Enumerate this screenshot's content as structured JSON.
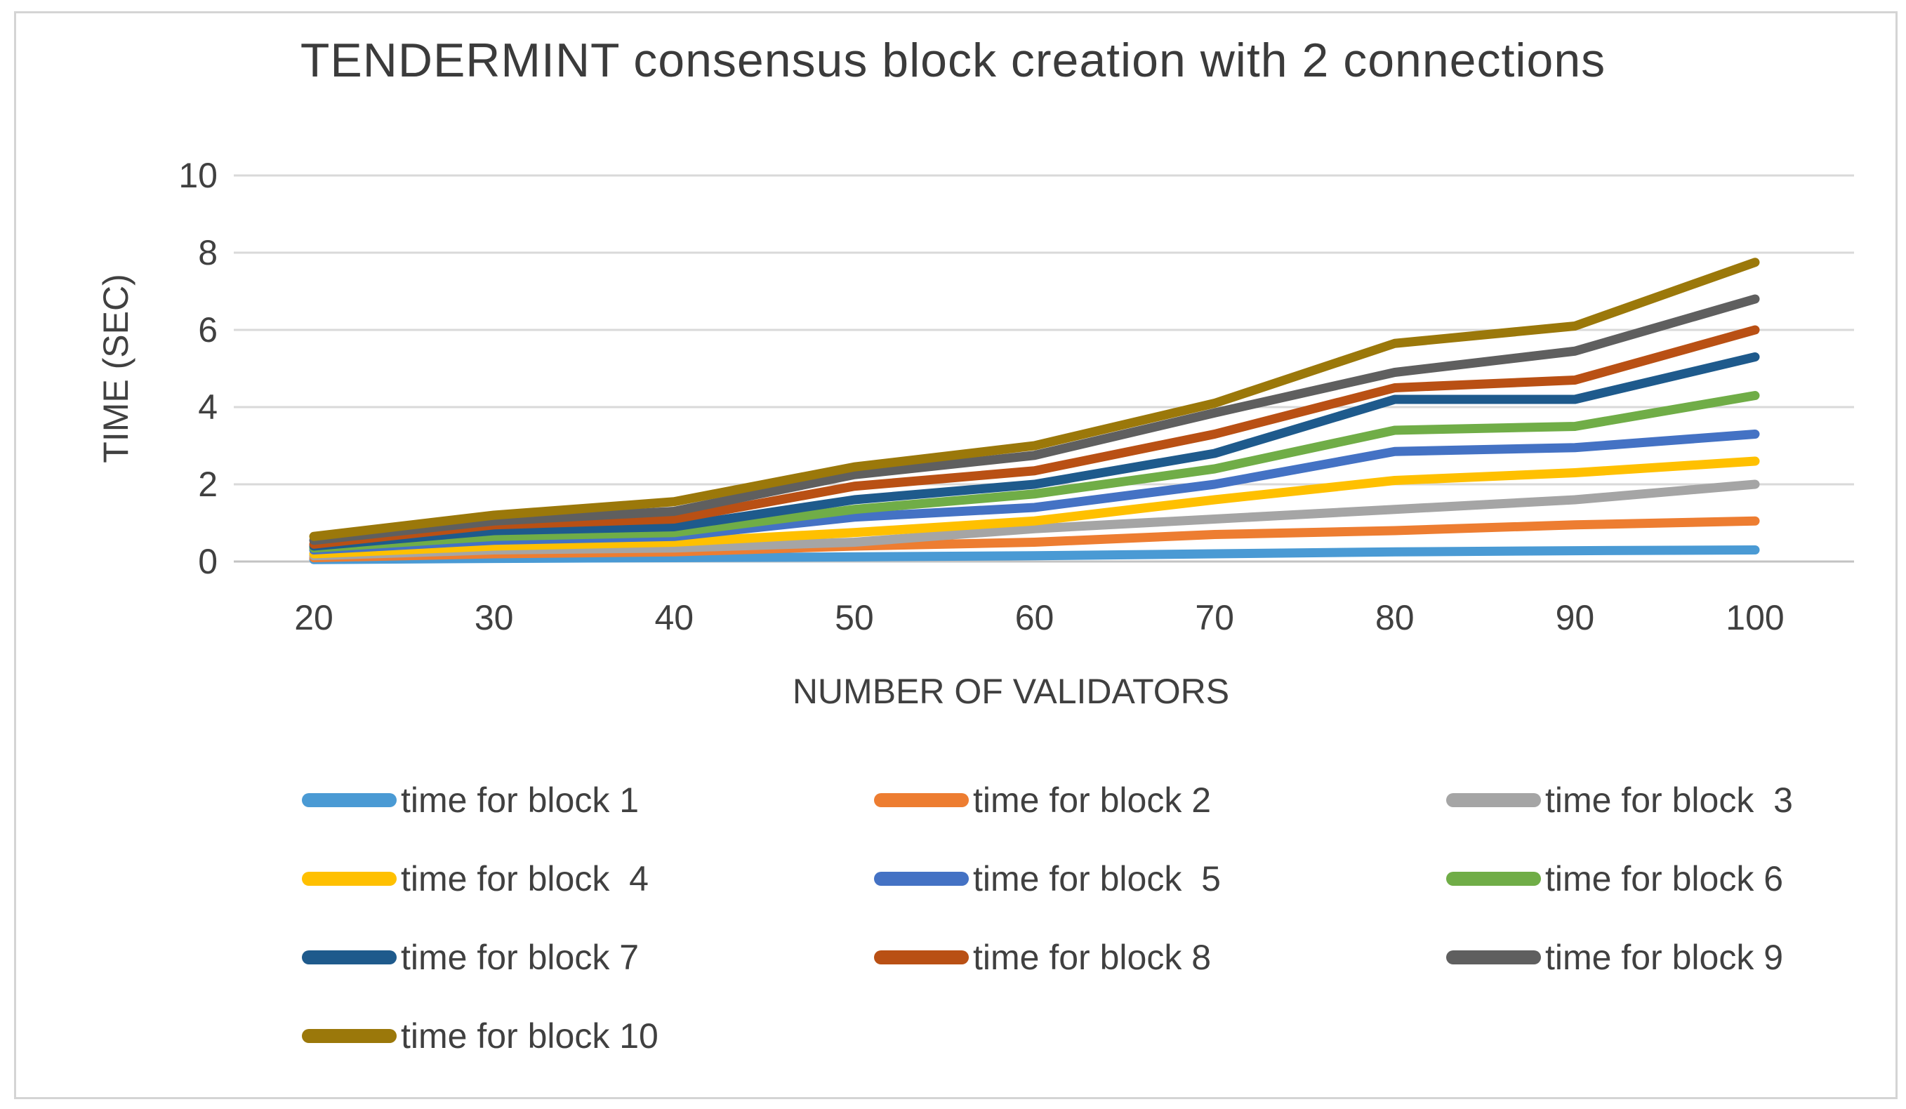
{
  "chart_data": {
    "type": "line",
    "title": "TENDERMINT  consensus  block creation with 2 connections",
    "xlabel": "NUMBER OF VALIDATORS",
    "ylabel": "TIME (SEC)",
    "x": [
      20,
      30,
      40,
      50,
      60,
      70,
      80,
      90,
      100
    ],
    "ylim": [
      0,
      10
    ],
    "yticks": [
      0,
      2,
      4,
      6,
      8,
      10
    ],
    "grid": true,
    "legend_position": "bottom",
    "gridline_color": "#d9d9d9",
    "axis_line_color": "#c3c3c3",
    "text_color": "#404040",
    "series": [
      {
        "name": "time for block 1",
        "color": "#4A9AD4",
        "values": [
          0.05,
          0.08,
          0.1,
          0.12,
          0.15,
          0.2,
          0.25,
          0.28,
          0.3
        ]
      },
      {
        "name": "time for block 2",
        "color": "#ED7D31",
        "values": [
          0.1,
          0.2,
          0.25,
          0.4,
          0.5,
          0.7,
          0.8,
          0.95,
          1.05
        ]
      },
      {
        "name": "time for block  3",
        "color": "#A5A5A5",
        "values": [
          0.15,
          0.3,
          0.35,
          0.5,
          0.85,
          1.1,
          1.35,
          1.6,
          2.0
        ]
      },
      {
        "name": "time for block  4",
        "color": "#FFC000",
        "values": [
          0.2,
          0.4,
          0.5,
          0.75,
          1.05,
          1.6,
          2.1,
          2.3,
          2.6
        ]
      },
      {
        "name": "time for block  5",
        "color": "#4472C4",
        "values": [
          0.3,
          0.55,
          0.65,
          1.15,
          1.4,
          2.0,
          2.85,
          2.95,
          3.3
        ]
      },
      {
        "name": "time for block 6",
        "color": "#70AD47",
        "values": [
          0.35,
          0.65,
          0.75,
          1.35,
          1.75,
          2.4,
          3.4,
          3.5,
          4.3
        ]
      },
      {
        "name": "time for block 7",
        "color": "#1E5A8C",
        "values": [
          0.4,
          0.8,
          0.9,
          1.6,
          2.0,
          2.8,
          4.2,
          4.2,
          5.3
        ]
      },
      {
        "name": "time for block 8",
        "color": "#B95014",
        "values": [
          0.45,
          0.95,
          1.1,
          1.95,
          2.35,
          3.3,
          4.5,
          4.7,
          6.0
        ]
      },
      {
        "name": "time for block 9",
        "color": "#5F5F5F",
        "values": [
          0.55,
          1.05,
          1.3,
          2.25,
          2.75,
          3.85,
          4.9,
          5.45,
          6.8
        ]
      },
      {
        "name": "time for block 10",
        "color": "#9B780A",
        "values": [
          0.65,
          1.2,
          1.55,
          2.45,
          3.0,
          4.1,
          5.65,
          6.1,
          7.75
        ]
      }
    ]
  }
}
